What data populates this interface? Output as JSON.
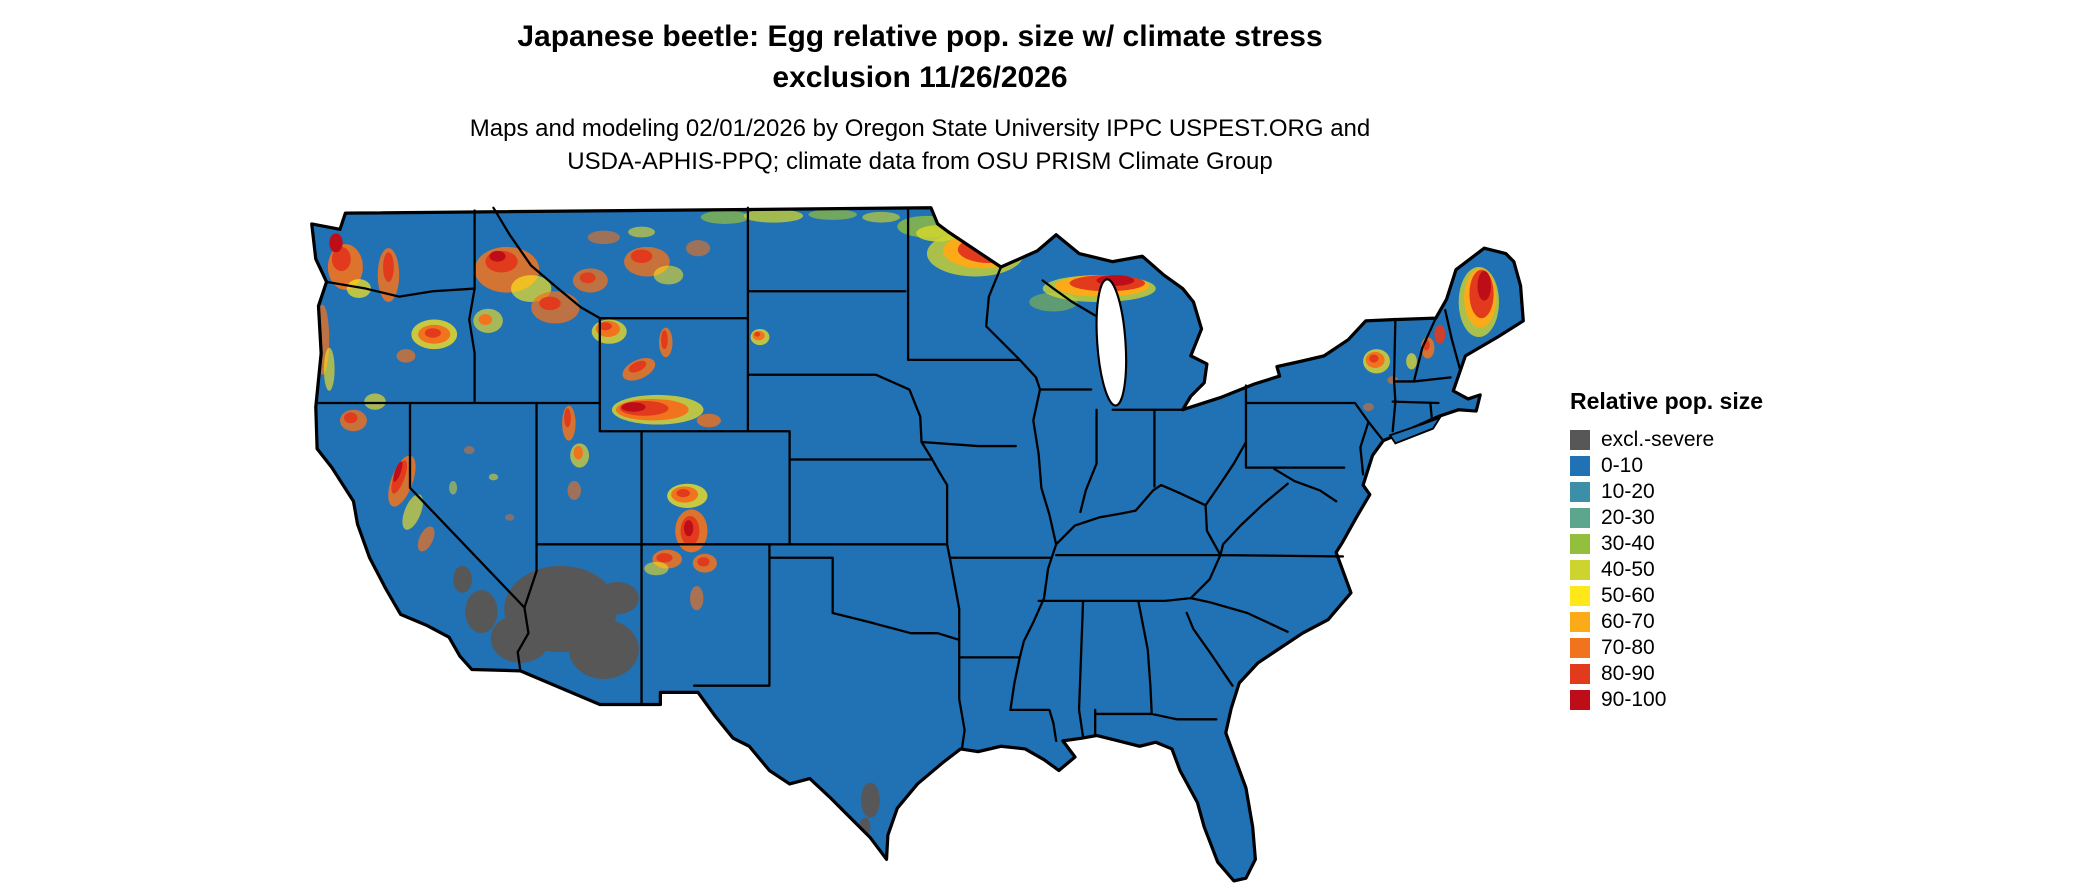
{
  "header": {
    "title_line1": "Japanese beetle: Egg relative pop. size w/ climate stress",
    "title_line2": "exclusion 11/26/2026",
    "subtitle_line1": "Maps and modeling 02/01/2026 by Oregon State University IPPC USPEST.ORG and",
    "subtitle_line2": "USDA-APHIS-PPQ; climate data from OSU PRISM Climate Group"
  },
  "map": {
    "region": "Contiguous United States",
    "base_color": "#2171b5",
    "water_color": "#ffffff",
    "border_color": "#000000"
  },
  "legend": {
    "title": "Relative pop. size",
    "items": [
      {
        "label": "excl.-severe",
        "color": "#575757"
      },
      {
        "label": "0-10",
        "color": "#2171b5"
      },
      {
        "label": "10-20",
        "color": "#3d8fa8"
      },
      {
        "label": "20-30",
        "color": "#5ba68c"
      },
      {
        "label": "30-40",
        "color": "#94bf3d"
      },
      {
        "label": "40-50",
        "color": "#cdd430"
      },
      {
        "label": "50-60",
        "color": "#ffe81a"
      },
      {
        "label": "60-70",
        "color": "#fbab18"
      },
      {
        "label": "70-80",
        "color": "#f2731d"
      },
      {
        "label": "80-90",
        "color": "#e23a1c"
      },
      {
        "label": "90-100",
        "color": "#bd0d18"
      }
    ]
  }
}
